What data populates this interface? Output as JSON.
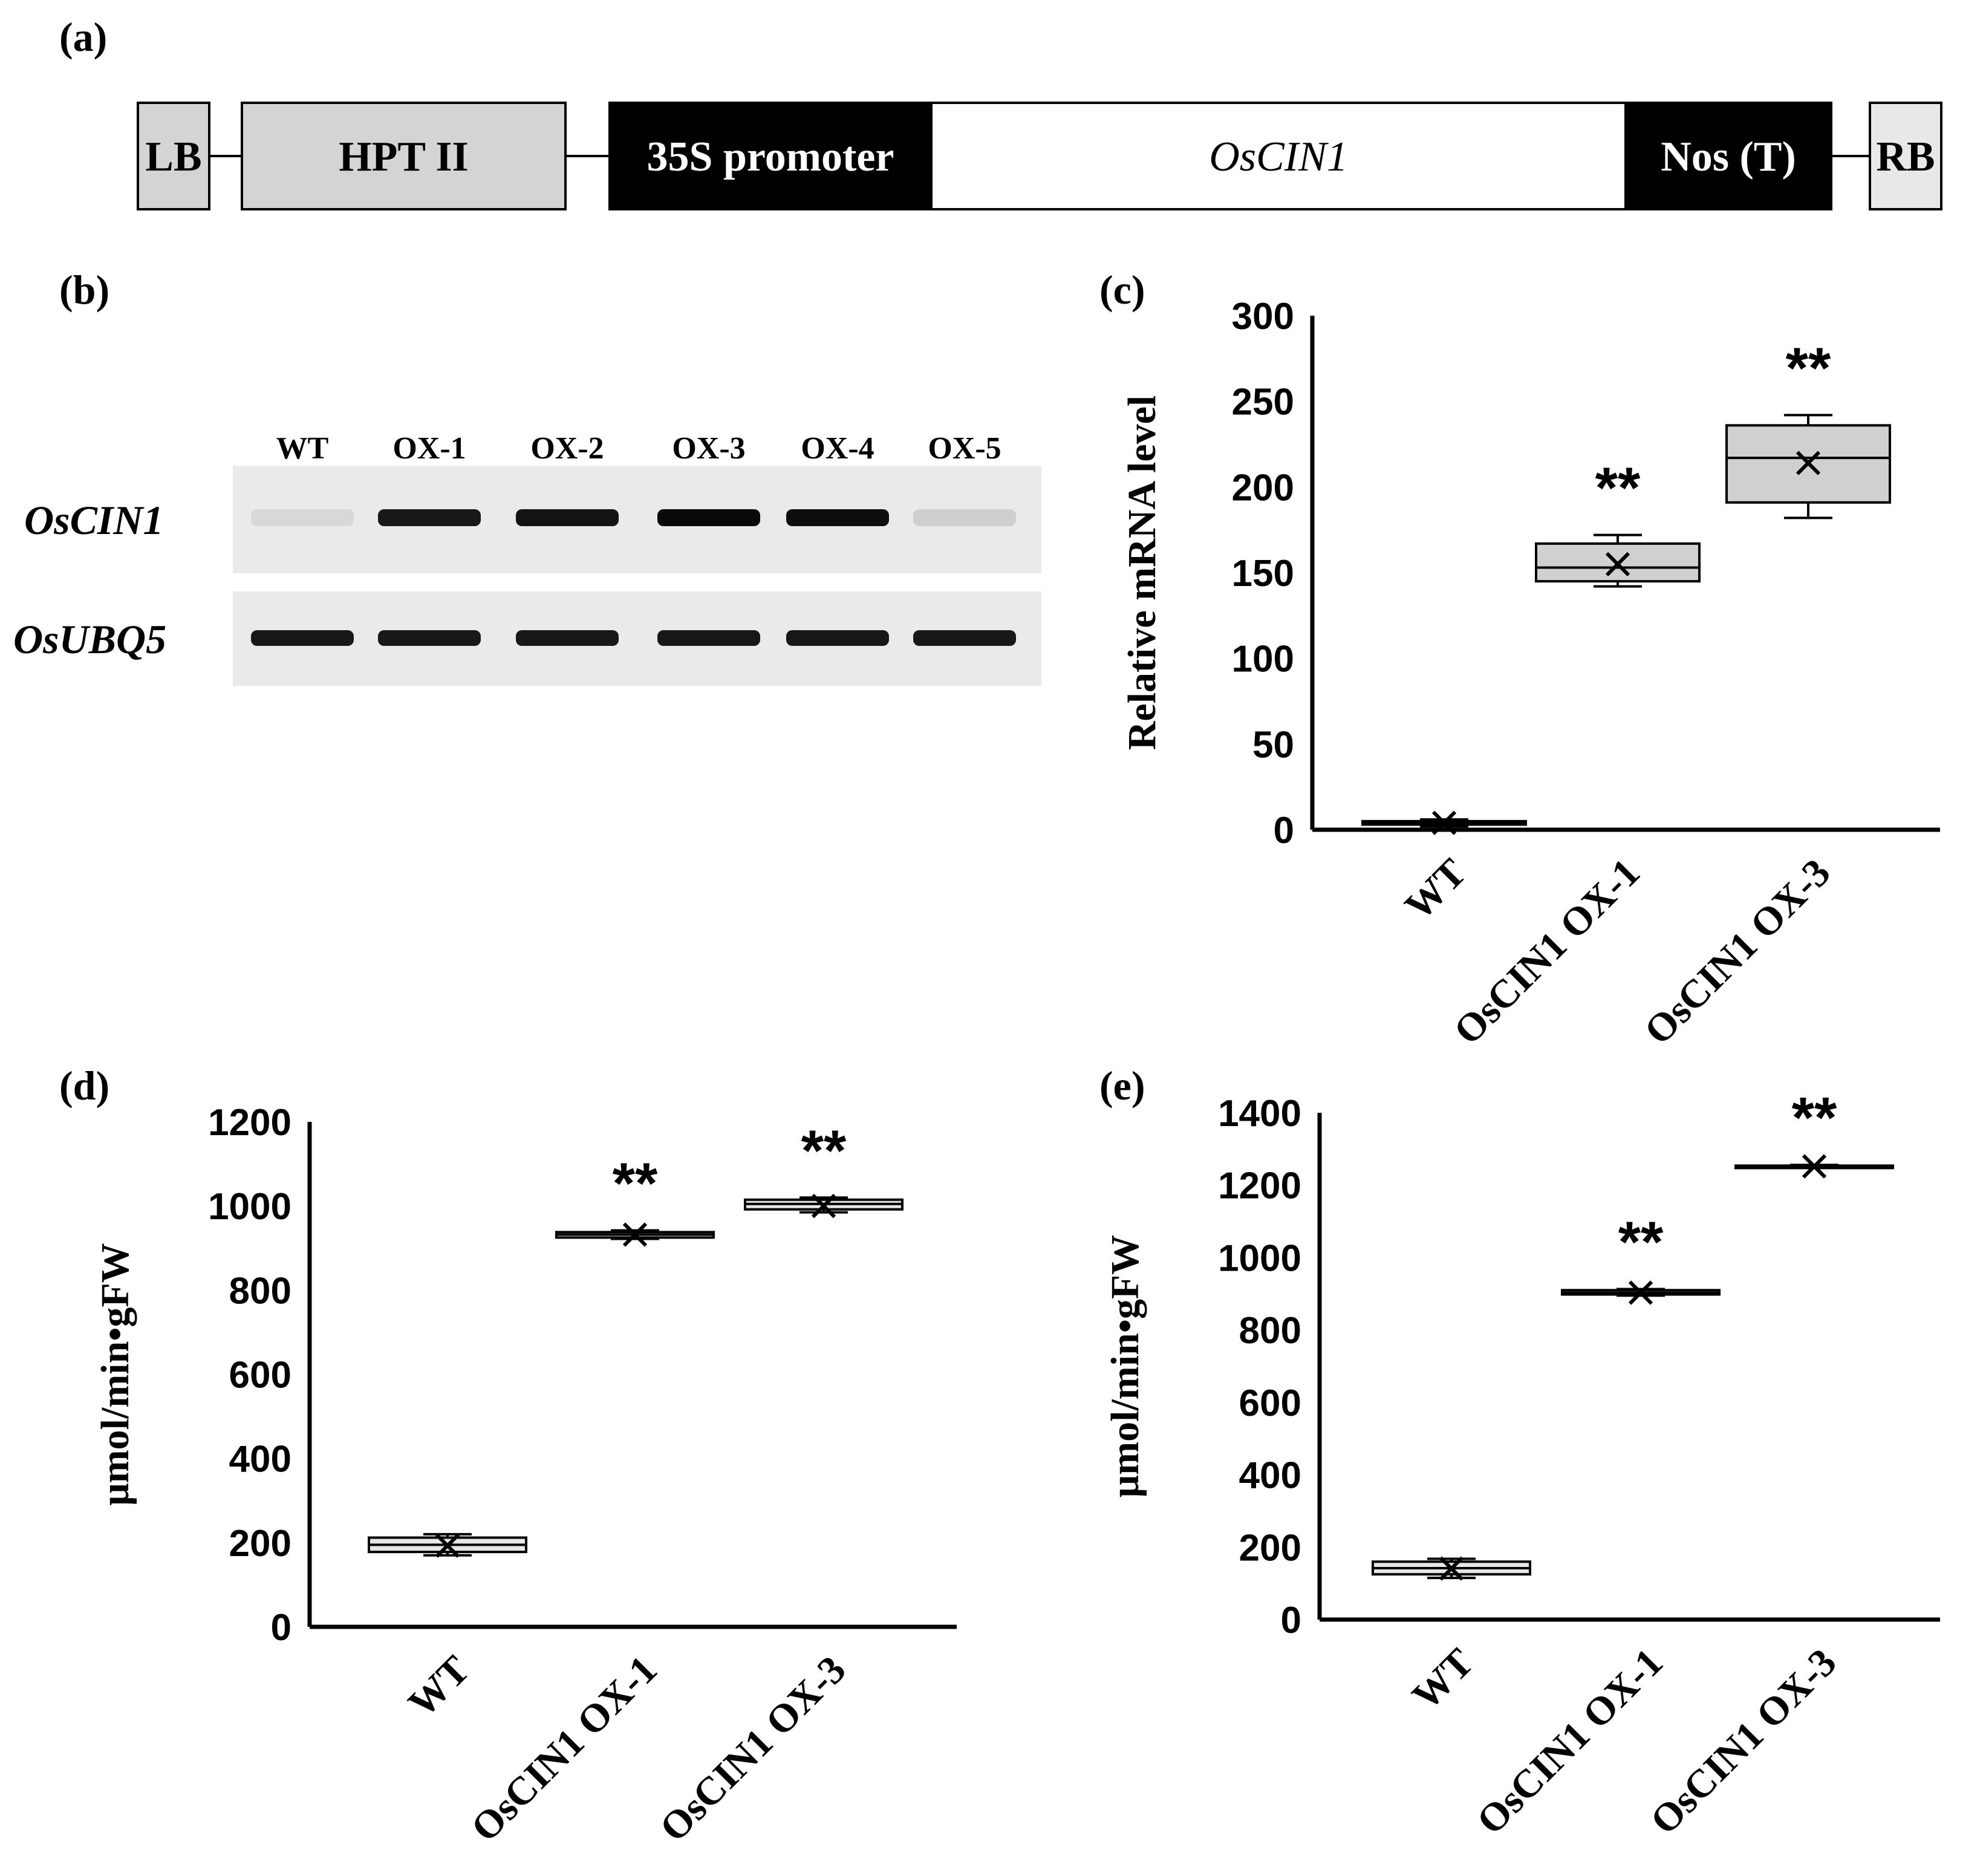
{
  "panel_labels": {
    "a": "(a)",
    "b": "(b)",
    "c": "(c)",
    "d": "(d)",
    "e": "(e)"
  },
  "construct": {
    "segments": [
      {
        "label": "LB",
        "style": "light"
      },
      {
        "label": "HPT II",
        "style": "light"
      },
      {
        "label": "35S promoter",
        "style": "dark"
      },
      {
        "label": "OsCIN1",
        "style": "white"
      },
      {
        "label": "Nos (T)",
        "style": "dark"
      },
      {
        "label": "RB",
        "style": "lighter"
      }
    ]
  },
  "gel": {
    "lanes": [
      "WT",
      "OX-1",
      "OX-2",
      "OX-3",
      "OX-4",
      "OX-5"
    ],
    "rows": [
      {
        "label": "OsCIN1",
        "band_intensity": [
          0.08,
          0.9,
          0.92,
          0.96,
          0.94,
          0.12
        ]
      },
      {
        "label": "OsUBQ5",
        "band_intensity": [
          0.9,
          0.9,
          0.9,
          0.9,
          0.9,
          0.9
        ]
      }
    ]
  },
  "colors": {
    "box_fill_c": "#d0d0d0",
    "box_fill_light": "#e6e6e6",
    "dark_segment": "#000000",
    "light_segment": "#d4d4d4"
  },
  "chart_data": [
    {
      "id": "c",
      "type": "box",
      "ylabel": "Relative mRNA level",
      "ylim": [
        0,
        300
      ],
      "yticks": [
        0,
        50,
        100,
        150,
        200,
        250,
        300
      ],
      "categories": [
        "WT",
        "OsCIN1 OX-1",
        "OsCIN1 OX-3"
      ],
      "boxes": [
        {
          "min": 2,
          "q1": 3,
          "median": 4,
          "q3": 5,
          "max": 6,
          "mean": 4,
          "sig": ""
        },
        {
          "min": 142,
          "q1": 145,
          "median": 153,
          "q3": 167,
          "max": 172,
          "mean": 155,
          "sig": "**"
        },
        {
          "min": 182,
          "q1": 191,
          "median": 217,
          "q3": 236,
          "max": 242,
          "mean": 214,
          "sig": "**"
        }
      ]
    },
    {
      "id": "d",
      "type": "box",
      "ylabel": "μmol/min•gFW",
      "ylim": [
        0,
        1200
      ],
      "yticks": [
        0,
        200,
        400,
        600,
        800,
        1000,
        1200
      ],
      "categories": [
        "WT",
        "OsCIN1 OX-1",
        "OsCIN1 OX-3"
      ],
      "boxes": [
        {
          "min": 170,
          "q1": 178,
          "median": 195,
          "q3": 212,
          "max": 220,
          "mean": 193,
          "sig": ""
        },
        {
          "min": 922,
          "q1": 925,
          "median": 932,
          "q3": 938,
          "max": 942,
          "mean": 932,
          "sig": "**"
        },
        {
          "min": 985,
          "q1": 992,
          "median": 1005,
          "q3": 1015,
          "max": 1020,
          "mean": 1000,
          "sig": "**"
        }
      ]
    },
    {
      "id": "e",
      "type": "box",
      "ylabel": "μmol/min•gFW",
      "ylim": [
        0,
        1400
      ],
      "yticks": [
        0,
        200,
        400,
        600,
        800,
        1000,
        1200,
        1400
      ],
      "categories": [
        "WT",
        "OsCIN1 OX-1",
        "OsCIN1 OX-3"
      ],
      "boxes": [
        {
          "min": 115,
          "q1": 125,
          "median": 142,
          "q3": 160,
          "max": 168,
          "mean": 141,
          "sig": ""
        },
        {
          "min": 895,
          "q1": 898,
          "median": 903,
          "q3": 910,
          "max": 913,
          "mean": 903,
          "sig": "**"
        },
        {
          "min": 1248,
          "q1": 1250,
          "median": 1252,
          "q3": 1254,
          "max": 1256,
          "mean": 1252,
          "sig": "**"
        }
      ]
    }
  ]
}
